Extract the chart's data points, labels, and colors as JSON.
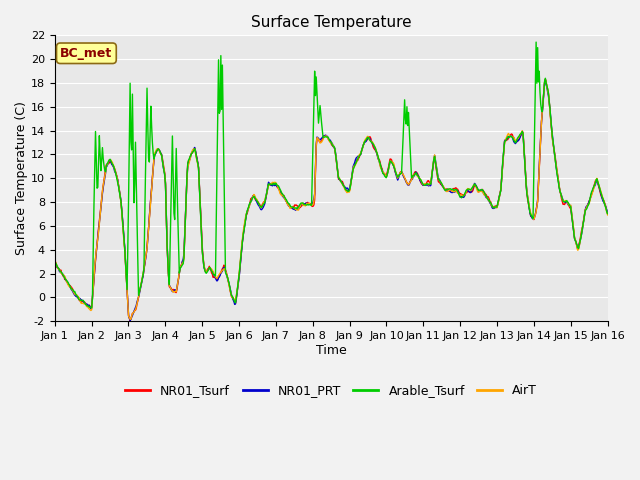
{
  "title": "Surface Temperature",
  "xlabel": "Time",
  "ylabel": "Surface Temperature (C)",
  "ylim": [
    -2,
    22
  ],
  "xlim": [
    0,
    15
  ],
  "xtick_labels": [
    "Jan 1",
    "Jan 2",
    "Jan 3",
    "Jan 4",
    "Jan 5",
    "Jan 6",
    "Jan 7",
    "Jan 8",
    "Jan 9",
    "Jan 10",
    "Jan 11",
    "Jan 12",
    "Jan 13",
    "Jan 14",
    "Jan 15",
    "Jan 16"
  ],
  "ytick_values": [
    -2,
    0,
    2,
    4,
    6,
    8,
    10,
    12,
    14,
    16,
    18,
    20,
    22
  ],
  "annotation_text": "BC_met",
  "annotation_color": "#8B0000",
  "annotation_bg": "#FFFF99",
  "line_colors": {
    "NR01_Tsurf": "#FF0000",
    "NR01_PRT": "#0000CC",
    "Arable_Tsurf": "#00CC00",
    "AirT": "#FFA500"
  },
  "line_width": 1.0,
  "bg_color": "#E8E8E8",
  "grid_color": "#FFFFFF",
  "title_fontsize": 11,
  "legend_fontsize": 9,
  "axis_label_fontsize": 9,
  "tick_fontsize": 8,
  "fig_width": 6.4,
  "fig_height": 4.8,
  "dpi": 100
}
